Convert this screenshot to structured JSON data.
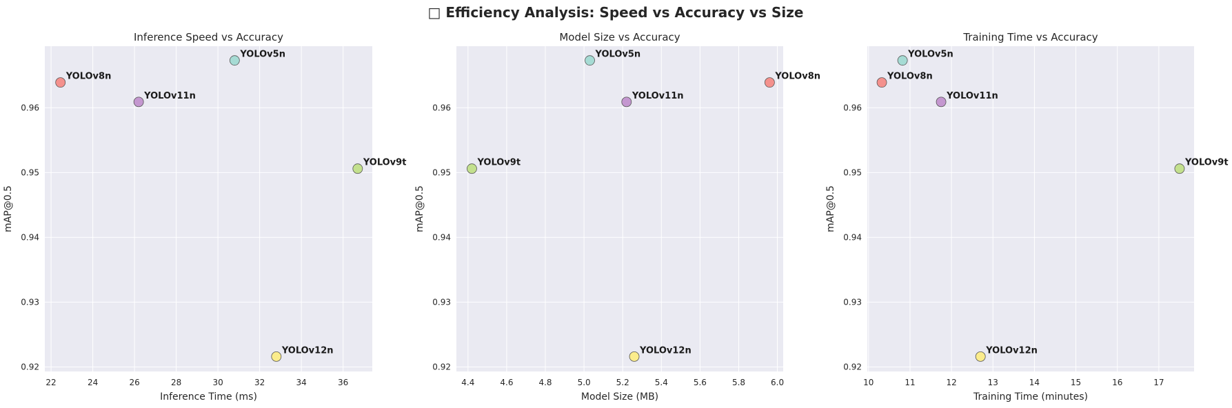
{
  "figure": {
    "suptitle": "□ Efficiency Analysis: Speed vs Accuracy vs Size"
  },
  "chart_data": [
    {
      "type": "scatter",
      "title": "Inference Speed vs Accuracy",
      "xlabel": "Inference Time (ms)",
      "ylabel": "mAP@0.5",
      "xlim": [
        21.7,
        37.4
      ],
      "ylim": [
        0.9193,
        0.9695
      ],
      "xticks": [
        "22",
        "24",
        "26",
        "28",
        "30",
        "32",
        "34",
        "36"
      ],
      "yticks": [
        "0.92",
        "0.93",
        "0.94",
        "0.95",
        "0.96"
      ],
      "grid": true,
      "points": [
        {
          "label": "YOLOv8n",
          "x": 22.45,
          "y": 0.9639,
          "color": "#f4918d"
        },
        {
          "label": "YOLOv11n",
          "x": 26.2,
          "y": 0.9609,
          "color": "#c497d0"
        },
        {
          "label": "YOLOv5n",
          "x": 30.8,
          "y": 0.9673,
          "color": "#a6dbd4"
        },
        {
          "label": "YOLOv9t",
          "x": 36.7,
          "y": 0.9506,
          "color": "#c3e08e"
        },
        {
          "label": "YOLOv12n",
          "x": 32.8,
          "y": 0.9216,
          "color": "#fbec8c"
        }
      ]
    },
    {
      "type": "scatter",
      "title": "Model Size vs Accuracy",
      "xlabel": "Model Size (MB)",
      "ylabel": "mAP@0.5",
      "xlim": [
        4.34,
        6.03
      ],
      "ylim": [
        0.9193,
        0.9695
      ],
      "xticks": [
        "4.4",
        "4.6",
        "4.8",
        "5.0",
        "5.2",
        "5.4",
        "5.6",
        "5.8",
        "6.0"
      ],
      "yticks": [
        "0.92",
        "0.93",
        "0.94",
        "0.95",
        "0.96"
      ],
      "grid": true,
      "points": [
        {
          "label": "YOLOv5n",
          "x": 5.03,
          "y": 0.9673,
          "color": "#a6dbd4"
        },
        {
          "label": "YOLOv11n",
          "x": 5.22,
          "y": 0.9609,
          "color": "#c497d0"
        },
        {
          "label": "YOLOv8n",
          "x": 5.96,
          "y": 0.9639,
          "color": "#f4918d"
        },
        {
          "label": "YOLOv9t",
          "x": 4.42,
          "y": 0.9506,
          "color": "#c3e08e"
        },
        {
          "label": "YOLOv12n",
          "x": 5.26,
          "y": 0.9216,
          "color": "#fbec8c"
        }
      ]
    },
    {
      "type": "scatter",
      "title": "Training Time vs Accuracy",
      "xlabel": "Training Time (minutes)",
      "ylabel": "mAP@0.5",
      "xlim": [
        9.97,
        17.85
      ],
      "ylim": [
        0.9193,
        0.9695
      ],
      "xticks": [
        "10",
        "11",
        "12",
        "13",
        "14",
        "15",
        "16",
        "17"
      ],
      "yticks": [
        "0.92",
        "0.93",
        "0.94",
        "0.95",
        "0.96"
      ],
      "grid": true,
      "points": [
        {
          "label": "YOLOv5n",
          "x": 10.82,
          "y": 0.9673,
          "color": "#a6dbd4"
        },
        {
          "label": "YOLOv8n",
          "x": 10.32,
          "y": 0.9639,
          "color": "#f4918d"
        },
        {
          "label": "YOLOv11n",
          "x": 11.75,
          "y": 0.9609,
          "color": "#c497d0"
        },
        {
          "label": "YOLOv9t",
          "x": 17.5,
          "y": 0.9506,
          "color": "#c3e08e"
        },
        {
          "label": "YOLOv12n",
          "x": 12.7,
          "y": 0.9216,
          "color": "#fbec8c"
        }
      ]
    }
  ]
}
